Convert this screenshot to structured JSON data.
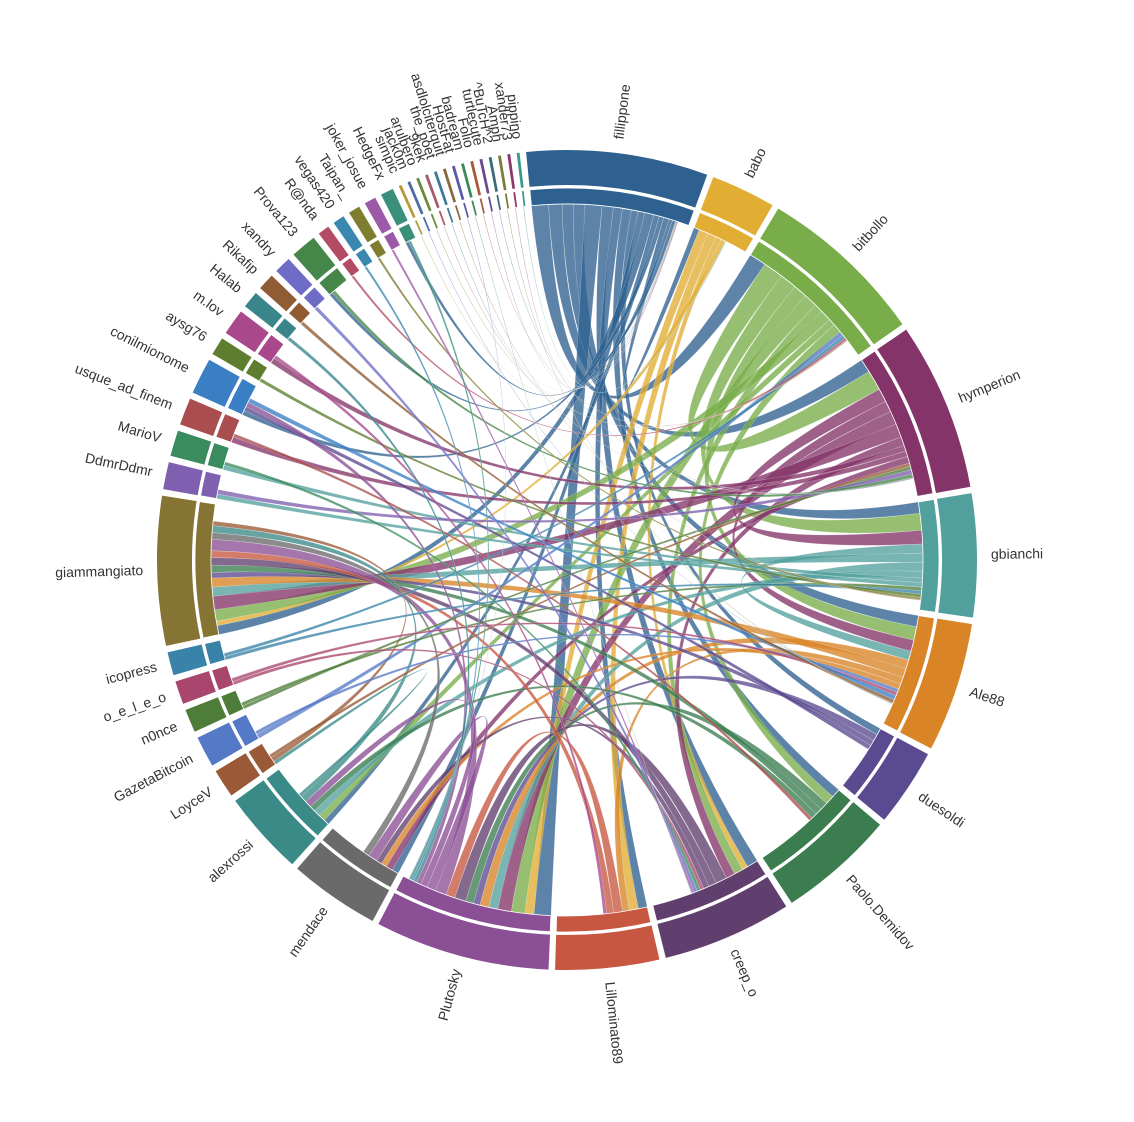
{
  "chart_data": {
    "type": "chord",
    "title": "",
    "groups": [
      {
        "name": "fillippone",
        "size": 14,
        "color": "#2f6190"
      },
      {
        "name": "babo",
        "size": 5,
        "color": "#e1ad33"
      },
      {
        "name": "bitbollo",
        "size": 13,
        "color": "#78ad4a"
      },
      {
        "name": "hymperion",
        "size": 13,
        "color": "#843469"
      },
      {
        "name": "gbianchi",
        "size": 9.5,
        "color": "#52a09e"
      },
      {
        "name": "Ale88",
        "size": 10,
        "color": "#d88427"
      },
      {
        "name": "duesoldi",
        "size": 6,
        "color": "#5a4a90"
      },
      {
        "name": "Paolo.Demidov",
        "size": 9,
        "color": "#3b7d4f"
      },
      {
        "name": "creep_o",
        "size": 10,
        "color": "#603f6e"
      },
      {
        "name": "Lillominato89",
        "size": 8,
        "color": "#c75740"
      },
      {
        "name": "Plutosky",
        "size": 13.5,
        "color": "#8a4f95"
      },
      {
        "name": "mendace",
        "size": 7,
        "color": "#6a6a6a"
      },
      {
        "name": "alexrossi",
        "size": 6.5,
        "color": "#3a8b87"
      },
      {
        "name": "LoyceV",
        "size": 2.2,
        "color": "#9a5a37"
      },
      {
        "name": "GazetaBitcoin",
        "size": 2.4,
        "color": "#5479c7"
      },
      {
        "name": "n0nce",
        "size": 1.8,
        "color": "#4e7d3a"
      },
      {
        "name": "o_e_l_e_o",
        "size": 1.8,
        "color": "#a9466d"
      },
      {
        "name": "icopress",
        "size": 1.8,
        "color": "#3a83a8"
      },
      {
        "name": "giammangiato",
        "size": 11.5,
        "color": "#857434"
      },
      {
        "name": "DdmrDdmr",
        "size": 2.1,
        "color": "#7e5fb0"
      },
      {
        "name": "MarioV",
        "size": 2.0,
        "color": "#3a8c5e"
      },
      {
        "name": "usque_ad_finem",
        "size": 2.1,
        "color": "#a94d4e"
      },
      {
        "name": "conilmionome",
        "size": 2.8,
        "color": "#3a7fc4"
      },
      {
        "name": "aysg76",
        "size": 1.4,
        "color": "#5e7d2f"
      },
      {
        "name": "m.lov",
        "size": 2.0,
        "color": "#a9498b"
      },
      {
        "name": "Halab",
        "size": 1.3,
        "color": "#3a858a"
      },
      {
        "name": "Rikafip",
        "size": 1.3,
        "color": "#8f5c34"
      },
      {
        "name": "xandry",
        "size": 1.3,
        "color": "#6e6cc7"
      },
      {
        "name": "Prova123",
        "size": 2.0,
        "color": "#448748"
      },
      {
        "name": "R@nda",
        "size": 0.9,
        "color": "#b24b63"
      },
      {
        "name": "vegas420",
        "size": 0.9,
        "color": "#3a88b0"
      },
      {
        "name": "Taipan_",
        "size": 0.9,
        "color": "#7f7d2f"
      },
      {
        "name": "joker_josue",
        "size": 0.9,
        "color": "#9d59a9"
      },
      {
        "name": "HedgeFx",
        "size": 1.0,
        "color": "#3a8f7a"
      },
      {
        "name": "simpic",
        "size": 0.22,
        "color": "#b39a3a"
      },
      {
        "name": "jack0m",
        "size": 0.22,
        "color": "#4a6aa8"
      },
      {
        "name": "arulbero",
        "size": 0.22,
        "color": "#6a8a3a"
      },
      {
        "name": "9kek",
        "size": 0.22,
        "color": "#a85a6a"
      },
      {
        "name": "the_poet",
        "size": 0.22,
        "color": "#3a7a9a"
      },
      {
        "name": "asdlolciterquit",
        "size": 0.22,
        "color": "#8a6a3a"
      },
      {
        "name": "HostFat",
        "size": 0.22,
        "color": "#5a5aa8"
      },
      {
        "name": "badream",
        "size": 0.22,
        "color": "#3a8a5a"
      },
      {
        "name": "Folio",
        "size": 0.22,
        "color": "#a8583a"
      },
      {
        "name": "turtlecute",
        "size": 0.22,
        "color": "#6a4a8a"
      },
      {
        "name": "^BuTcH^2",
        "size": 0.22,
        "color": "#3a6a7a"
      },
      {
        "name": "Amph",
        "size": 0.22,
        "color": "#7a7a3a"
      },
      {
        "name": "xander73",
        "size": 0.22,
        "color": "#8a3a6a"
      },
      {
        "name": "pippino",
        "size": 0.22,
        "color": "#3a9a8a"
      }
    ],
    "links": [
      [
        "fillippone",
        "bitbollo",
        1.5
      ],
      [
        "fillippone",
        "hymperion",
        1.2
      ],
      [
        "fillippone",
        "gbianchi",
        1.0
      ],
      [
        "fillippone",
        "Ale88",
        1.0
      ],
      [
        "fillippone",
        "Plutosky",
        1.5
      ],
      [
        "fillippone",
        "creep_o",
        1.0
      ],
      [
        "fillippone",
        "Lillominato89",
        0.8
      ],
      [
        "fillippone",
        "Paolo.Demidov",
        0.8
      ],
      [
        "fillippone",
        "duesoldi",
        0.6
      ],
      [
        "fillippone",
        "mendace",
        0.6
      ],
      [
        "fillippone",
        "giammangiato",
        0.8
      ],
      [
        "fillippone",
        "alexrossi",
        0.5
      ],
      [
        "fillippone",
        "conilmionome",
        0.4
      ],
      [
        "fillippone",
        "babo",
        0.5
      ],
      [
        "fillippone",
        "HedgeFx",
        0.3
      ],
      [
        "fillippone",
        "Prova123",
        0.3
      ],
      [
        "babo",
        "Plutosky",
        0.8
      ],
      [
        "babo",
        "Lillominato89",
        0.8
      ],
      [
        "babo",
        "creep_o",
        0.5
      ],
      [
        "babo",
        "giammangiato",
        0.4
      ],
      [
        "bitbollo",
        "hymperion",
        1.8
      ],
      [
        "bitbollo",
        "gbianchi",
        1.5
      ],
      [
        "bitbollo",
        "Ale88",
        1.2
      ],
      [
        "bitbollo",
        "Plutosky",
        1.2
      ],
      [
        "bitbollo",
        "creep_o",
        0.8
      ],
      [
        "bitbollo",
        "giammangiato",
        1.0
      ],
      [
        "bitbollo",
        "alexrossi",
        0.6
      ],
      [
        "bitbollo",
        "Paolo.Demidov",
        0.8
      ],
      [
        "hymperion",
        "gbianchi",
        1.2
      ],
      [
        "hymperion",
        "Ale88",
        1.0
      ],
      [
        "hymperion",
        "Plutosky",
        1.2
      ],
      [
        "hymperion",
        "giammangiato",
        1.2
      ],
      [
        "hymperion",
        "creep_o",
        0.8
      ],
      [
        "hymperion",
        "m.lov",
        0.5
      ],
      [
        "hymperion",
        "usque_ad_finem",
        0.5
      ],
      [
        "hymperion",
        "mendace",
        0.6
      ],
      [
        "gbianchi",
        "Ale88",
        0.8
      ],
      [
        "gbianchi",
        "giammangiato",
        0.8
      ],
      [
        "gbianchi",
        "Plutosky",
        0.8
      ],
      [
        "gbianchi",
        "alexrossi",
        0.6
      ],
      [
        "gbianchi",
        "MarioV",
        0.4
      ],
      [
        "gbianchi",
        "DdmrDdmr",
        0.4
      ],
      [
        "Ale88",
        "Plutosky",
        0.8
      ],
      [
        "Ale88",
        "giammangiato",
        0.8
      ],
      [
        "Ale88",
        "Lillominato89",
        0.6
      ],
      [
        "Ale88",
        "mendace",
        0.5
      ],
      [
        "duesoldi",
        "Plutosky",
        0.6
      ],
      [
        "duesoldi",
        "giammangiato",
        0.5
      ],
      [
        "duesoldi",
        "conilmionome",
        0.4
      ],
      [
        "Paolo.Demidov",
        "Plutosky",
        0.7
      ],
      [
        "Paolo.Demidov",
        "giammangiato",
        0.6
      ],
      [
        "Paolo.Demidov",
        "alexrossi",
        0.5
      ],
      [
        "creep_o",
        "Plutosky",
        1.0
      ],
      [
        "creep_o",
        "giammangiato",
        0.7
      ],
      [
        "creep_o",
        "mendace",
        0.5
      ],
      [
        "Lillominato89",
        "Plutosky",
        0.8
      ],
      [
        "Lillominato89",
        "giammangiato",
        0.6
      ],
      [
        "Plutosky",
        "giammangiato",
        1.0
      ],
      [
        "Plutosky",
        "mendace",
        0.8
      ],
      [
        "Plutosky",
        "alexrossi",
        0.6
      ],
      [
        "Plutosky",
        "conilmionome",
        0.4
      ],
      [
        "mendace",
        "giammangiato",
        0.6
      ],
      [
        "alexrossi",
        "giammangiato",
        0.6
      ],
      [
        "alexrossi",
        "LoyceV",
        0.3
      ],
      [
        "LoyceV",
        "giammangiato",
        0.4
      ],
      [
        "LoyceV",
        "hymperion",
        0.3
      ],
      [
        "GazetaBitcoin",
        "bitbollo",
        0.4
      ],
      [
        "GazetaBitcoin",
        "Ale88",
        0.3
      ],
      [
        "n0nce",
        "hymperion",
        0.3
      ],
      [
        "n0nce",
        "gbianchi",
        0.3
      ],
      [
        "o_e_l_e_o",
        "creep_o",
        0.3
      ],
      [
        "o_e_l_e_o",
        "Ale88",
        0.3
      ],
      [
        "icopress",
        "gbianchi",
        0.3
      ],
      [
        "icopress",
        "bitbollo",
        0.3
      ],
      [
        "DdmrDdmr",
        "hymperion",
        0.4
      ],
      [
        "MarioV",
        "creep_o",
        0.3
      ],
      [
        "usque_ad_finem",
        "Paolo.Demidov",
        0.3
      ],
      [
        "conilmionome",
        "Ale88",
        0.4
      ],
      [
        "aysg76",
        "gbianchi",
        0.3
      ],
      [
        "m.lov",
        "Lillominato89",
        0.3
      ],
      [
        "Halab",
        "Plutosky",
        0.3
      ],
      [
        "Rikafip",
        "Ale88",
        0.3
      ],
      [
        "xandry",
        "creep_o",
        0.3
      ],
      [
        "Prova123",
        "hymperion",
        0.3
      ],
      [
        "R@nda",
        "bitbollo",
        0.2
      ],
      [
        "vegas420",
        "Plutosky",
        0.2
      ],
      [
        "Taipan_",
        "gbianchi",
        0.2
      ],
      [
        "joker_josue",
        "creep_o",
        0.2
      ],
      [
        "HedgeFx",
        "Plutosky",
        0.2
      ],
      [
        "simpic",
        "fillippone",
        0.05
      ],
      [
        "jack0m",
        "Ale88",
        0.05
      ],
      [
        "arulbero",
        "bitbollo",
        0.05
      ],
      [
        "9kek",
        "hymperion",
        0.05
      ],
      [
        "the_poet",
        "fillippone",
        0.05
      ],
      [
        "asdlolciterquit",
        "gbianchi",
        0.05
      ],
      [
        "HostFat",
        "Plutosky",
        0.05
      ],
      [
        "badream",
        "creep_o",
        0.05
      ],
      [
        "Folio",
        "bitbollo",
        0.05
      ],
      [
        "turtlecute",
        "fillippone",
        0.05
      ],
      [
        "^BuTcH^2",
        "hymperion",
        0.05
      ],
      [
        "Amph",
        "Ale88",
        0.05
      ],
      [
        "xander73",
        "fillippone",
        0.05
      ],
      [
        "pippino",
        "babo",
        0.05
      ]
    ]
  }
}
